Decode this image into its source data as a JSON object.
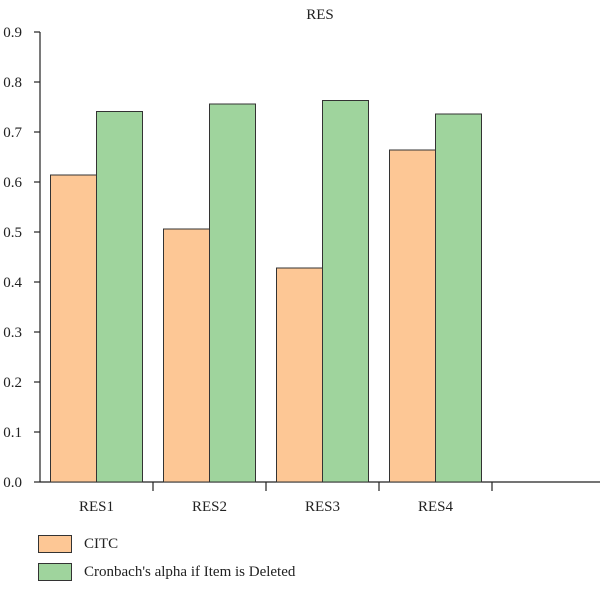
{
  "chart_data": {
    "type": "bar",
    "title": "RES",
    "xlabel": "",
    "ylabel": "",
    "categories": [
      "RES1",
      "RES2",
      "RES3",
      "RES4",
      ""
    ],
    "series": [
      {
        "name": "CITC",
        "values": [
          0.614,
          0.506,
          0.428,
          0.664,
          null
        ],
        "color": "#fdc795"
      },
      {
        "name": "Cronbach's alpha if Item is Deleted",
        "values": [
          0.741,
          0.756,
          0.763,
          0.736,
          null
        ],
        "color": "#9fd49d"
      }
    ],
    "ylim": [
      0.0,
      0.9
    ],
    "yticks": [
      "0.0",
      "0.1",
      "0.2",
      "0.3",
      "0.4",
      "0.5",
      "0.6",
      "0.7",
      "0.8",
      "0.9"
    ],
    "grid": false,
    "legend_position": "bottom-left"
  }
}
